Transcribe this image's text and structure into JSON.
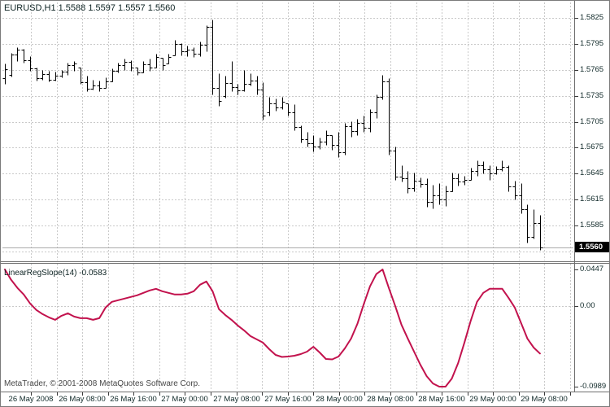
{
  "header": {
    "text": "EURUSD,H1  1.5588 1.5597 1.5557 1.5560",
    "symbol": "EURUSD",
    "period": "H1",
    "open": "1.5588",
    "high": "1.5597",
    "low": "1.5557",
    "close": "1.5560"
  },
  "watermark": {
    "text": "MetaTrader, © 2001-2008 MetaQuotes Software Corp."
  },
  "indicator": {
    "label": "LinearRegSlope(14) -0.0583",
    "name": "LinearRegSlope",
    "period": "14",
    "last_value": "-0.0583"
  },
  "price_badge": "1.5560",
  "colors": {
    "bar": "#000000",
    "indicator_line": "#c2124d",
    "grid": "#c9c9c9",
    "border": "#6e6e6e",
    "tick": "#3a3a3a",
    "axis_text": "#112a2a",
    "price_line": "#ababab",
    "badge_bg": "#000000",
    "badge_text": "#ffffff",
    "background": "#ffffff"
  },
  "chart_data": [
    {
      "type": "ohlc-bars",
      "title": "EURUSD,H1",
      "ylim": [
        1.55447,
        1.58429
      ],
      "current_price": 1.556,
      "yticks": [
        {
          "label": "1.5825",
          "value": 1.5825
        },
        {
          "label": "1.5795",
          "value": 1.5795
        },
        {
          "label": "1.5765",
          "value": 1.5765
        },
        {
          "label": "1.5735",
          "value": 1.5735
        },
        {
          "label": "1.5705",
          "value": 1.5705
        },
        {
          "label": "1.5675",
          "value": 1.5675
        },
        {
          "label": "1.5645",
          "value": 1.5645
        },
        {
          "label": "1.5615",
          "value": 1.5615
        },
        {
          "label": "1.5585",
          "value": 1.5585
        }
      ],
      "grid_extra": [
        1.5555
      ],
      "times": [
        "26 May 2008",
        "26 May 08:00",
        "26 May 16:00",
        "27 May 00:00",
        "27 May 08:00",
        "27 May 16:00",
        "28 May 00:00",
        "28 May 08:00",
        "28 May 16:00",
        "29 May 00:00",
        "29 May 08:00"
      ],
      "bars": [
        [
          1.5755,
          1.5772,
          1.5749,
          1.5766
        ],
        [
          1.5759,
          1.5785,
          1.5757,
          1.5783
        ],
        [
          1.5783,
          1.5791,
          1.5775,
          1.5788
        ],
        [
          1.5788,
          1.5789,
          1.5773,
          1.5776
        ],
        [
          1.5776,
          1.5781,
          1.5764,
          1.5767
        ],
        [
          1.5767,
          1.5768,
          1.5753,
          1.5755
        ],
        [
          1.5755,
          1.5765,
          1.5754,
          1.576
        ],
        [
          1.576,
          1.5764,
          1.5752,
          1.5754
        ],
        [
          1.5754,
          1.5763,
          1.5753,
          1.5758
        ],
        [
          1.5758,
          1.5765,
          1.5756,
          1.5763
        ],
        [
          1.5763,
          1.5773,
          1.5759,
          1.577
        ],
        [
          1.577,
          1.5775,
          1.5764,
          1.5772
        ],
        [
          1.5768,
          1.5768,
          1.5749,
          1.5751
        ],
        [
          1.5751,
          1.5758,
          1.574,
          1.5743
        ],
        [
          1.5743,
          1.5754,
          1.5742,
          1.5747
        ],
        [
          1.5747,
          1.5753,
          1.574,
          1.5744
        ],
        [
          1.5744,
          1.5756,
          1.5744,
          1.5752
        ],
        [
          1.5752,
          1.5767,
          1.5752,
          1.5764
        ],
        [
          1.5764,
          1.5773,
          1.5762,
          1.577
        ],
        [
          1.577,
          1.5778,
          1.5765,
          1.5774
        ],
        [
          1.5774,
          1.5776,
          1.5764,
          1.5768
        ],
        [
          1.5768,
          1.5768,
          1.5759,
          1.5762
        ],
        [
          1.5762,
          1.5775,
          1.5762,
          1.5771
        ],
        [
          1.5771,
          1.5778,
          1.5764,
          1.5768
        ],
        [
          1.5768,
          1.5784,
          1.5768,
          1.578
        ],
        [
          1.5779,
          1.5779,
          1.5765,
          1.577
        ],
        [
          1.5772,
          1.5784,
          1.5772,
          1.578
        ],
        [
          1.5782,
          1.58,
          1.5782,
          1.5795
        ],
        [
          1.5795,
          1.5796,
          1.5782,
          1.5786
        ],
        [
          1.5786,
          1.5793,
          1.5781,
          1.5788
        ],
        [
          1.5788,
          1.5791,
          1.578,
          1.5784
        ],
        [
          1.5784,
          1.5798,
          1.5781,
          1.5794
        ],
        [
          1.5794,
          1.5817,
          1.5786,
          1.5815
        ],
        [
          1.5815,
          1.5823,
          1.5737,
          1.5744
        ],
        [
          1.5744,
          1.5761,
          1.5723,
          1.5729
        ],
        [
          1.5735,
          1.5758,
          1.5733,
          1.575
        ],
        [
          1.575,
          1.5775,
          1.574,
          1.5745
        ],
        [
          1.5745,
          1.5749,
          1.5737,
          1.5741
        ],
        [
          1.5741,
          1.5765,
          1.574,
          1.5749
        ],
        [
          1.5749,
          1.5761,
          1.5747,
          1.5753
        ],
        [
          1.5753,
          1.5758,
          1.5737,
          1.5742
        ],
        [
          1.5742,
          1.5751,
          1.5707,
          1.5712
        ],
        [
          1.5716,
          1.5734,
          1.5712,
          1.5726
        ],
        [
          1.5726,
          1.5732,
          1.5718,
          1.5722
        ],
        [
          1.5722,
          1.5734,
          1.572,
          1.5728
        ],
        [
          1.5726,
          1.5726,
          1.5712,
          1.5716
        ],
        [
          1.5716,
          1.5725,
          1.5695,
          1.5699
        ],
        [
          1.5699,
          1.5701,
          1.5681,
          1.5685
        ],
        [
          1.5685,
          1.5693,
          1.5676,
          1.568
        ],
        [
          1.568,
          1.569,
          1.5671,
          1.5676
        ],
        [
          1.5676,
          1.5687,
          1.5674,
          1.5682
        ],
        [
          1.5682,
          1.5695,
          1.5678,
          1.569
        ],
        [
          1.569,
          1.569,
          1.5673,
          1.5678
        ],
        [
          1.5678,
          1.5693,
          1.5664,
          1.567
        ],
        [
          1.567,
          1.5704,
          1.5667,
          1.57
        ],
        [
          1.57,
          1.5706,
          1.5688,
          1.5694
        ],
        [
          1.5694,
          1.5708,
          1.569,
          1.5704
        ],
        [
          1.5704,
          1.5712,
          1.5693,
          1.5698
        ],
        [
          1.5698,
          1.572,
          1.5693,
          1.5716
        ],
        [
          1.5716,
          1.5737,
          1.5709,
          1.5734
        ],
        [
          1.5734,
          1.5759,
          1.5731,
          1.5752
        ],
        [
          1.5752,
          1.5755,
          1.5667,
          1.5672
        ],
        [
          1.5672,
          1.5676,
          1.5638,
          1.5642
        ],
        [
          1.5642,
          1.5655,
          1.5636,
          1.564
        ],
        [
          1.564,
          1.5648,
          1.5623,
          1.5628
        ],
        [
          1.5628,
          1.5646,
          1.5625,
          1.5637
        ],
        [
          1.5637,
          1.5641,
          1.5629,
          1.5633
        ],
        [
          1.5633,
          1.564,
          1.5607,
          1.5612
        ],
        [
          1.5612,
          1.5632,
          1.5605,
          1.562
        ],
        [
          1.562,
          1.5634,
          1.561,
          1.5615
        ],
        [
          1.5615,
          1.5631,
          1.5608,
          1.5625
        ],
        [
          1.5625,
          1.5646,
          1.5625,
          1.564
        ],
        [
          1.564,
          1.5645,
          1.5631,
          1.5636
        ],
        [
          1.5636,
          1.5643,
          1.5632,
          1.5638
        ],
        [
          1.5638,
          1.5652,
          1.5638,
          1.5648
        ],
        [
          1.5648,
          1.566,
          1.5643,
          1.5655
        ],
        [
          1.5655,
          1.5659,
          1.5645,
          1.565
        ],
        [
          1.565,
          1.5655,
          1.5638,
          1.5645
        ],
        [
          1.5645,
          1.5654,
          1.5644,
          1.565
        ],
        [
          1.565,
          1.566,
          1.5648,
          1.5653
        ],
        [
          1.5653,
          1.5655,
          1.5625,
          1.563
        ],
        [
          1.563,
          1.5637,
          1.5615,
          1.562
        ],
        [
          1.562,
          1.5634,
          1.5599,
          1.5604
        ],
        [
          1.5604,
          1.561,
          1.5565,
          1.5572
        ],
        [
          1.5572,
          1.5604,
          1.557,
          1.5588
        ],
        [
          1.5588,
          1.5597,
          1.5557,
          1.556
        ]
      ]
    },
    {
      "type": "line",
      "name": "LinearRegSlope(14)",
      "ylim": [
        -0.1039,
        0.0517
      ],
      "yticks": [
        {
          "label": "0.0447",
          "value": 0.0447
        },
        {
          "label": "0.00",
          "value": 0.0
        },
        {
          "label": "-0.0989",
          "value": -0.0989
        }
      ],
      "values": [
        0.0447,
        0.032,
        0.022,
        0.014,
        0.003,
        -0.005,
        -0.01,
        -0.014,
        -0.017,
        -0.012,
        -0.009,
        -0.013,
        -0.015,
        -0.015,
        -0.017,
        -0.015,
        -0.002,
        0.005,
        0.007,
        0.009,
        0.011,
        0.013,
        0.016,
        0.019,
        0.021,
        0.018,
        0.016,
        0.014,
        0.014,
        0.015,
        0.018,
        0.026,
        0.03,
        0.018,
        -0.004,
        -0.011,
        -0.017,
        -0.024,
        -0.03,
        -0.037,
        -0.041,
        -0.045,
        -0.053,
        -0.06,
        -0.0625,
        -0.062,
        -0.061,
        -0.059,
        -0.056,
        -0.05,
        -0.057,
        -0.065,
        -0.0655,
        -0.062,
        -0.052,
        -0.04,
        -0.022,
        0.002,
        0.024,
        0.039,
        0.0447,
        0.022,
        0.0,
        -0.023,
        -0.04,
        -0.056,
        -0.072,
        -0.086,
        -0.095,
        -0.0989,
        -0.0989,
        -0.089,
        -0.07,
        -0.045,
        -0.018,
        0.005,
        0.016,
        0.021,
        0.021,
        0.021,
        0.01,
        -0.002,
        -0.021,
        -0.04,
        -0.051,
        -0.0583
      ]
    }
  ]
}
